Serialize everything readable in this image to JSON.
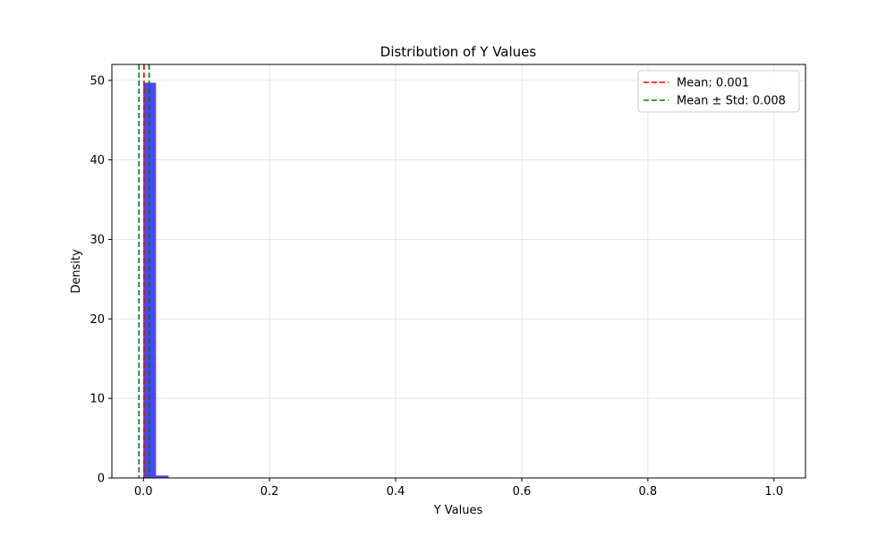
{
  "chart_data": {
    "type": "histogram",
    "title": "Distribution of Y Values",
    "xlabel": "Y Values",
    "ylabel": "Density",
    "xlim": [
      -0.05,
      1.05
    ],
    "ylim": [
      0,
      52
    ],
    "x_ticks": [
      0.0,
      0.2,
      0.4,
      0.6,
      0.8,
      1.0
    ],
    "x_tick_labels": [
      "0.0",
      "0.2",
      "0.4",
      "0.6",
      "0.8",
      "1.0"
    ],
    "y_ticks": [
      0,
      10,
      20,
      30,
      40,
      50
    ],
    "y_tick_labels": [
      "0",
      "10",
      "20",
      "30",
      "40",
      "50"
    ],
    "grid": true,
    "bar_color": "#3f3ff0",
    "bins": [
      {
        "x0": 0.0,
        "x1": 0.02,
        "density": 49.7
      },
      {
        "x0": 0.02,
        "x1": 0.04,
        "density": 0.3
      }
    ],
    "reference_lines": [
      {
        "label": "Mean: 0.001",
        "x": 0.001,
        "color": "#ff0000",
        "style": "dashed"
      },
      {
        "label": "Mean ± Std: 0.008",
        "x": 0.009,
        "color": "#008000",
        "style": "dashed"
      },
      {
        "label": "",
        "x": -0.007,
        "color": "#008000",
        "style": "dashed"
      }
    ],
    "legend": {
      "position": "top-right",
      "entries": [
        {
          "label": "Mean: 0.001",
          "color": "#ff0000"
        },
        {
          "label": "Mean ± Std: 0.008",
          "color": "#008000"
        }
      ]
    }
  }
}
